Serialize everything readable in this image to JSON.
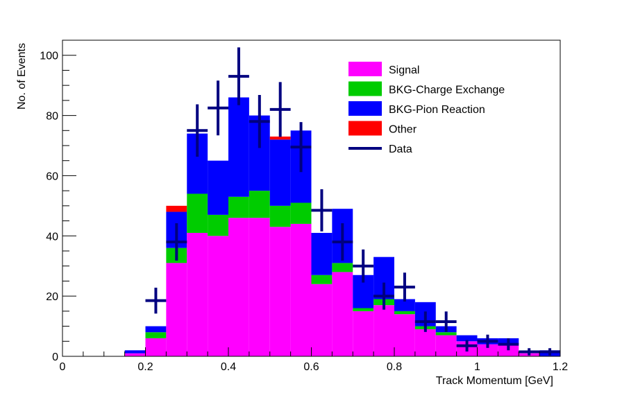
{
  "chart_data": {
    "type": "bar",
    "stacked": true,
    "xlabel": "Track Momentum [GeV]",
    "ylabel": "No. of Events",
    "xlim": [
      0,
      1.2
    ],
    "ylim": [
      0,
      105
    ],
    "bin_edges": [
      0.15,
      0.2,
      0.25,
      0.3,
      0.35,
      0.4,
      0.45,
      0.5,
      0.55,
      0.6,
      0.65,
      0.7,
      0.75,
      0.8,
      0.85,
      0.9,
      0.95,
      1.0,
      1.05,
      1.1,
      1.15,
      1.2
    ],
    "xticks": [
      {
        "value": 0,
        "label": "0"
      },
      {
        "value": 0.2,
        "label": "0.2"
      },
      {
        "value": 0.4,
        "label": "0.4"
      },
      {
        "value": 0.6,
        "label": "0.6"
      },
      {
        "value": 0.8,
        "label": "0.8"
      },
      {
        "value": 1.0,
        "label": "1"
      },
      {
        "value": 1.2,
        "label": "1.2"
      }
    ],
    "yticks": [
      {
        "value": 0,
        "label": "0"
      },
      {
        "value": 20,
        "label": "20"
      },
      {
        "value": 40,
        "label": "40"
      },
      {
        "value": 60,
        "label": "60"
      },
      {
        "value": 80,
        "label": "80"
      },
      {
        "value": 100,
        "label": "100"
      }
    ],
    "series": [
      {
        "name": "Signal",
        "color": "#ff00ff",
        "values": [
          1,
          6,
          31,
          41,
          40,
          46,
          46,
          43,
          44,
          24,
          28,
          15,
          17,
          14,
          9,
          7,
          5,
          4,
          4,
          1,
          0
        ]
      },
      {
        "name": "BKG-Charge Exchange",
        "color": "#00cc00",
        "values": [
          0,
          2,
          5,
          13,
          7,
          7,
          9,
          7,
          7,
          3,
          3,
          1,
          2,
          1,
          1,
          1,
          0,
          0,
          0,
          0,
          0
        ]
      },
      {
        "name": "BKG-Pion Reaction",
        "color": "#0000ff",
        "values": [
          1,
          2,
          12,
          20,
          18,
          33,
          25,
          22,
          24,
          14,
          18,
          11,
          14,
          4,
          8,
          2,
          2,
          2,
          2,
          0,
          2
        ]
      },
      {
        "name": "Other",
        "color": "#ff0000",
        "values": [
          0,
          0,
          2,
          0,
          0,
          0,
          0,
          1,
          0,
          0,
          0,
          0,
          0,
          0,
          0,
          0,
          0,
          0,
          0,
          0,
          0
        ]
      }
    ],
    "data_points": {
      "name": "Data",
      "color": "#000080",
      "x": [
        0.225,
        0.275,
        0.325,
        0.375,
        0.425,
        0.475,
        0.525,
        0.575,
        0.625,
        0.675,
        0.725,
        0.775,
        0.825,
        0.875,
        0.925,
        0.975,
        1.025,
        1.075,
        1.125,
        1.175
      ],
      "y": [
        18.5,
        38,
        75,
        82.5,
        93,
        78,
        82,
        69.5,
        48.5,
        38,
        30,
        20,
        23,
        11.5,
        11.5,
        3.5,
        5,
        4,
        1.5,
        1.5
      ],
      "yerr": [
        4.3,
        6.2,
        8.7,
        9.1,
        9.6,
        8.8,
        9.1,
        8.3,
        7.0,
        6.2,
        5.5,
        4.5,
        4.8,
        3.4,
        3.4,
        1.9,
        2.2,
        2.0,
        1.2,
        1.2
      ]
    },
    "legend": {
      "position": "top-right",
      "entries": [
        {
          "label": "Signal",
          "color": "#ff00ff",
          "kind": "box"
        },
        {
          "label": "BKG-Charge Exchange",
          "color": "#00cc00",
          "kind": "box"
        },
        {
          "label": "BKG-Pion Reaction",
          "color": "#0000ff",
          "kind": "box"
        },
        {
          "label": "Other",
          "color": "#ff0000",
          "kind": "box"
        },
        {
          "label": "Data",
          "color": "#000080",
          "kind": "line"
        }
      ]
    }
  }
}
